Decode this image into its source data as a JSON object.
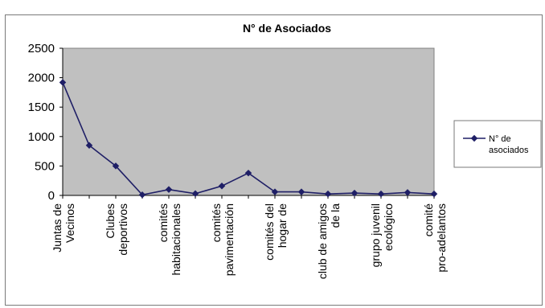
{
  "chart_data": {
    "type": "line",
    "title": "N° de Asociados",
    "xlabel": "",
    "ylabel": "",
    "ylim": [
      0,
      2500
    ],
    "yticks": [
      "0",
      "500",
      "1000",
      "1500",
      "2000",
      "2500"
    ],
    "grid": false,
    "legend_position": "right",
    "categories": [
      "Juntas de Vecinos",
      "",
      "Clubes deportivos",
      "",
      "comités habitacionales",
      "",
      "comités pavimentación",
      "",
      "comités del hogar de",
      "",
      "club de amigos de la",
      "",
      "grupo juvenil ecológico",
      "",
      "comité pro-adelantos"
    ],
    "series": [
      {
        "name": "N° de asociados",
        "values": [
          1920,
          850,
          500,
          10,
          100,
          30,
          160,
          380,
          60,
          60,
          25,
          40,
          25,
          50,
          25
        ]
      }
    ],
    "colors": {
      "plot_bg": "#c0c0c0",
      "line": "#1f1f66",
      "marker": "#1f1f66"
    }
  }
}
